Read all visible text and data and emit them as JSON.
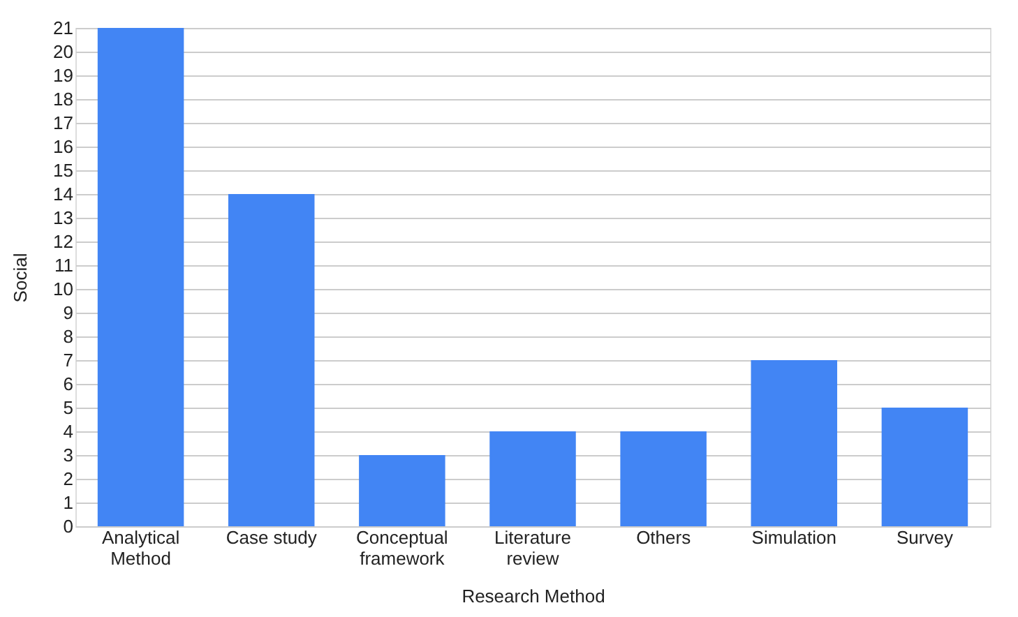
{
  "chart_data": {
    "type": "bar",
    "xlabel": "Research Method",
    "ylabel": "Social",
    "categories": [
      "Analytical\nMethod",
      "Case study",
      "Conceptual\nframework",
      "Literature\nreview",
      "Others",
      "Simulation",
      "Survey"
    ],
    "values": [
      21,
      14,
      3,
      4,
      4,
      7,
      5
    ],
    "color": "#4285f4",
    "ylim": [
      0,
      21
    ],
    "yticks": [
      0,
      1,
      2,
      3,
      4,
      5,
      6,
      7,
      8,
      9,
      10,
      11,
      12,
      13,
      14,
      15,
      16,
      17,
      18,
      19,
      20,
      21
    ],
    "grid": "y"
  }
}
